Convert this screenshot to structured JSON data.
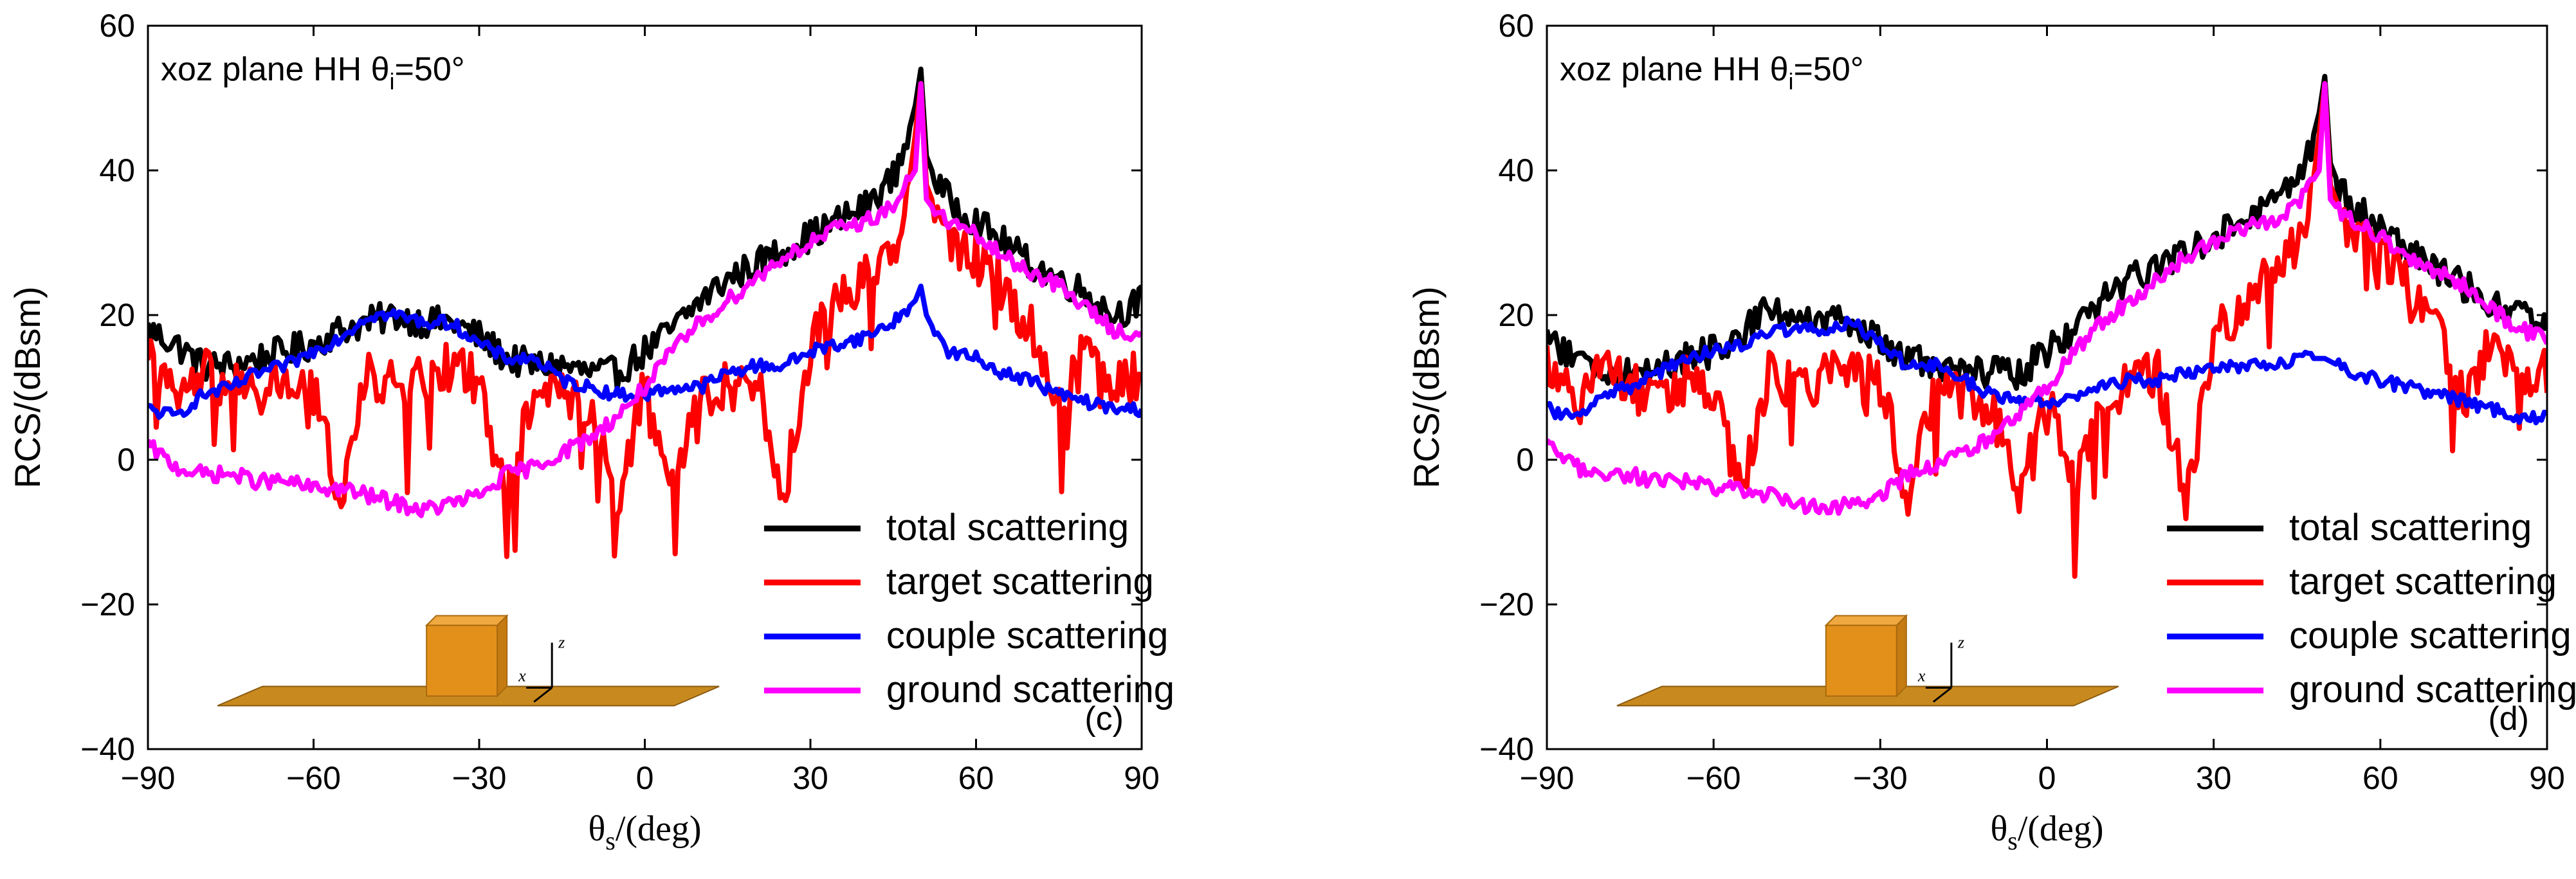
{
  "chart_data": [
    {
      "type": "line",
      "panel_label": "(c)",
      "annotation": {
        "main": "xoz plane  HH    θ",
        "sub": "i",
        "tail": "=50°"
      },
      "xlabel": {
        "main": "θ",
        "sub": "s",
        "tail": "/(deg)"
      },
      "ylabel": "RCS/(dBsm)",
      "xlim": [
        -90,
        90
      ],
      "ylim": [
        -40,
        60
      ],
      "xticks": [
        -90,
        -60,
        -30,
        0,
        30,
        60,
        90
      ],
      "yticks": [
        -40,
        -20,
        0,
        20,
        40,
        60
      ],
      "xtick_labels": [
        "−90",
        "−60",
        "−30",
        "0",
        "30",
        "60",
        "90"
      ],
      "ytick_labels": [
        "−40",
        "−20",
        "0",
        "20",
        "40",
        "60"
      ],
      "legend": {
        "placement": "lower-right",
        "entries": [
          "total scattering",
          "target scattering",
          "couple scattering",
          "ground scattering"
        ]
      },
      "inset": {
        "axis_x": "x",
        "axis_z": "z"
      },
      "series": [
        {
          "name": "total scattering",
          "color": "#000000",
          "x": [
            -90,
            -85,
            -80,
            -75,
            -70,
            -65,
            -60,
            -55,
            -50,
            -45,
            -40,
            -35,
            -30,
            -25,
            -20,
            -15,
            -10,
            -5,
            0,
            5,
            10,
            15,
            20,
            25,
            30,
            35,
            40,
            45,
            47,
            49,
            50,
            51,
            53,
            55,
            60,
            65,
            70,
            75,
            80,
            85,
            90
          ],
          "y": [
            18,
            16,
            13,
            13,
            14,
            15,
            16,
            18,
            19,
            20,
            19,
            19,
            17,
            14,
            13,
            13,
            12,
            12,
            15,
            18,
            22,
            25,
            27,
            29,
            31,
            33,
            35,
            39,
            43,
            49,
            54,
            42,
            38,
            36,
            33,
            30,
            27,
            25,
            23,
            20,
            22
          ]
        },
        {
          "name": "target scattering",
          "color": "#ff0000",
          "x": [
            -90,
            -85,
            -80,
            -75,
            -70,
            -65,
            -60,
            -55,
            -50,
            -45,
            -40,
            -35,
            -30,
            -25,
            -20,
            -15,
            -10,
            -5,
            0,
            5,
            10,
            15,
            20,
            25,
            30,
            35,
            40,
            45,
            47,
            49,
            50,
            51,
            53,
            55,
            60,
            65,
            70,
            75,
            80,
            85,
            90
          ],
          "y": [
            14,
            8,
            12,
            10,
            9,
            11,
            9,
            -5,
            12,
            10,
            11,
            13,
            11,
            -6,
            10,
            9,
            8,
            -5,
            10,
            -4,
            9,
            10,
            12,
            -6,
            16,
            22,
            26,
            30,
            33,
            45,
            52,
            38,
            34,
            30,
            28,
            24,
            18,
            8,
            16,
            10,
            12
          ]
        },
        {
          "name": "couple scattering",
          "color": "#0000ff",
          "x": [
            -90,
            -85,
            -80,
            -75,
            -70,
            -65,
            -60,
            -55,
            -50,
            -45,
            -40,
            -35,
            -30,
            -25,
            -20,
            -15,
            -10,
            -5,
            0,
            5,
            10,
            15,
            20,
            25,
            30,
            35,
            40,
            45,
            49,
            50,
            51,
            53,
            55,
            60,
            65,
            70,
            75,
            80,
            85,
            90
          ],
          "y": [
            7,
            6,
            9,
            10,
            12,
            13,
            15,
            17,
            20,
            20,
            19,
            19,
            16,
            14,
            14,
            11,
            10,
            9,
            9,
            10,
            10,
            12,
            13,
            13,
            15,
            16,
            17,
            19,
            22,
            24,
            20,
            17,
            15,
            14,
            12,
            11,
            9,
            8,
            7,
            7
          ]
        },
        {
          "name": "ground scattering",
          "color": "#ff00ff",
          "x": [
            -90,
            -85,
            -80,
            -75,
            -70,
            -65,
            -60,
            -55,
            -50,
            -45,
            -40,
            -35,
            -30,
            -25,
            -20,
            -15,
            -10,
            -5,
            0,
            5,
            10,
            15,
            20,
            25,
            30,
            35,
            40,
            45,
            49,
            50,
            51,
            53,
            55,
            60,
            65,
            70,
            75,
            80,
            85,
            90
          ],
          "y": [
            2,
            -1,
            -2,
            -2,
            -3,
            -3,
            -4,
            -4,
            -5,
            -6,
            -7,
            -6,
            -5,
            -2,
            -1,
            1,
            3,
            6,
            10,
            15,
            19,
            22,
            25,
            28,
            30,
            32,
            33,
            35,
            40,
            52,
            36,
            34,
            33,
            31,
            28,
            26,
            24,
            21,
            18,
            17
          ]
        }
      ]
    },
    {
      "type": "line",
      "panel_label": "(d)",
      "annotation": {
        "main": "xoz plane  HH    θ",
        "sub": "i",
        "tail": "=50°"
      },
      "xlabel": {
        "main": "θ",
        "sub": "s",
        "tail": "/(deg)"
      },
      "ylabel": "RCS/(dBsm)",
      "xlim": [
        -90,
        90
      ],
      "ylim": [
        -40,
        60
      ],
      "xticks": [
        -90,
        -60,
        -30,
        0,
        30,
        60,
        90
      ],
      "yticks": [
        -40,
        -20,
        0,
        20,
        40,
        60
      ],
      "xtick_labels": [
        "−90",
        "−60",
        "−30",
        "0",
        "30",
        "60",
        "90"
      ],
      "ytick_labels": [
        "−40",
        "−20",
        "0",
        "20",
        "40",
        "60"
      ],
      "legend": {
        "placement": "lower-right",
        "entries": [
          "total scattering",
          "target scattering",
          "couple scattering",
          "ground scattering"
        ]
      },
      "inset": {
        "axis_x": "x",
        "axis_z": "z"
      },
      "series": [
        {
          "name": "total scattering",
          "color": "#000000",
          "x": [
            -90,
            -85,
            -80,
            -75,
            -70,
            -65,
            -60,
            -55,
            -50,
            -45,
            -40,
            -35,
            -30,
            -25,
            -20,
            -15,
            -10,
            -5,
            0,
            5,
            10,
            15,
            20,
            25,
            30,
            35,
            40,
            45,
            47,
            49,
            50,
            51,
            53,
            55,
            60,
            65,
            70,
            75,
            80,
            85,
            90
          ],
          "y": [
            17,
            14,
            12,
            12,
            13,
            14,
            15,
            17,
            22,
            19,
            19,
            19,
            16,
            14,
            13,
            12,
            12,
            12,
            15,
            18,
            22,
            25,
            27,
            29,
            31,
            33,
            35,
            38,
            42,
            48,
            53,
            41,
            37,
            35,
            32,
            29,
            26,
            24,
            22,
            20,
            19
          ]
        },
        {
          "name": "target scattering",
          "color": "#ff0000",
          "x": [
            -90,
            -85,
            -80,
            -75,
            -70,
            -65,
            -60,
            -55,
            -50,
            -45,
            -40,
            -35,
            -30,
            -25,
            -20,
            -15,
            -10,
            -5,
            0,
            5,
            10,
            15,
            20,
            25,
            30,
            35,
            40,
            45,
            47,
            49,
            50,
            51,
            53,
            55,
            60,
            65,
            70,
            75,
            80,
            85,
            90
          ],
          "y": [
            14,
            8,
            12,
            10,
            9,
            11,
            9,
            -5,
            12,
            10,
            11,
            13,
            11,
            -6,
            10,
            9,
            8,
            -5,
            10,
            -4,
            9,
            10,
            12,
            -6,
            16,
            22,
            26,
            30,
            33,
            45,
            52,
            38,
            34,
            30,
            28,
            24,
            18,
            8,
            16,
            10,
            12
          ]
        },
        {
          "name": "couple scattering",
          "color": "#0000ff",
          "x": [
            -90,
            -85,
            -80,
            -75,
            -70,
            -65,
            -60,
            -55,
            -50,
            -45,
            -40,
            -35,
            -30,
            -25,
            -20,
            -15,
            -10,
            -5,
            0,
            5,
            10,
            15,
            20,
            25,
            30,
            35,
            40,
            45,
            50,
            55,
            60,
            65,
            70,
            75,
            80,
            85,
            90
          ],
          "y": [
            7,
            6,
            9,
            10,
            12,
            14,
            15,
            16,
            18,
            18,
            18,
            19,
            16,
            13,
            13,
            11,
            9,
            8,
            8,
            9,
            10,
            11,
            11,
            12,
            13,
            13,
            13,
            14,
            14,
            12,
            11,
            10,
            9,
            8,
            7,
            6,
            6
          ]
        },
        {
          "name": "ground scattering",
          "color": "#ff00ff",
          "x": [
            -90,
            -85,
            -80,
            -75,
            -70,
            -65,
            -60,
            -55,
            -50,
            -45,
            -40,
            -35,
            -30,
            -25,
            -20,
            -15,
            -10,
            -5,
            0,
            5,
            10,
            15,
            20,
            25,
            30,
            35,
            40,
            45,
            49,
            50,
            51,
            53,
            55,
            60,
            65,
            70,
            75,
            80,
            85,
            90
          ],
          "y": [
            2,
            -1,
            -2,
            -2,
            -3,
            -3,
            -4,
            -4,
            -5,
            -6,
            -7,
            -6,
            -5,
            -2,
            -1,
            1,
            3,
            6,
            10,
            15,
            19,
            22,
            25,
            28,
            30,
            32,
            33,
            35,
            40,
            52,
            36,
            34,
            33,
            31,
            28,
            26,
            24,
            21,
            18,
            17
          ]
        }
      ]
    }
  ]
}
